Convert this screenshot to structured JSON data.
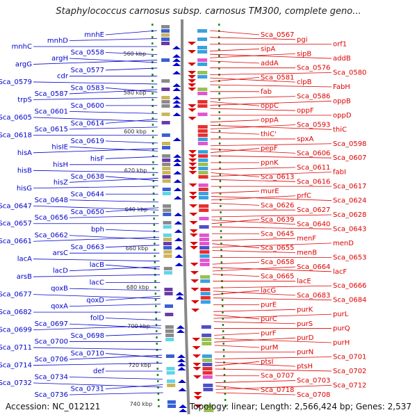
{
  "title": "Staphylococcus carnosus subsp. carnosus TM300, complete geno...",
  "footer": {
    "accession": "Accession: NC_012121",
    "topology": "Topology: linear; Length: 2,566,424 bp; Genes: 2,537"
  },
  "kbp_labels": [
    "560 kbp",
    "580 kbp",
    "600 kbp",
    "620 kbp",
    "640 kbp",
    "660 kbp",
    "680 kbp",
    "700 kbp",
    "720 kbp",
    "740 kbp"
  ],
  "colors": {
    "left": "#0000cc",
    "right": "#dd0000",
    "axis": "#888888",
    "tick": "#228822"
  },
  "left_genes": [
    "mnhE",
    "mnhD",
    "mnhC",
    "Sca_0558",
    "argH",
    "argG",
    "Sca_0577",
    "cdr",
    "Sca_0579",
    "Sca_0583",
    "Sca_0587",
    "trpS",
    "Sca_0600",
    "Sca_0601",
    "Sca_0605",
    "Sca_0614",
    "Sca_0615",
    "Sca_0618",
    "Sca_0619",
    "hisIE",
    "hisA",
    "hisF",
    "hisH",
    "hisB",
    "Sca_0638",
    "hisZ",
    "hisG",
    "Sca_0644",
    "Sca_0648",
    "Sca_0647",
    "Sca_0650",
    "Sca_0656",
    "Sca_0657",
    "bph",
    "Sca_0662",
    "Sca_0661",
    "Sca_0663",
    "arsC",
    "lacA",
    "lacB",
    "lacD",
    "arsB",
    "lacC",
    "qoxB",
    "Sca_0677",
    "qoxD",
    "qoxA",
    "Sca_0682",
    "folD",
    "Sca_0697",
    "Sca_0699",
    "Sca_0698",
    "Sca_0700",
    "Sca_0711",
    "Sca_0710",
    "Sca_0706",
    "Sca_0714",
    "def",
    "Sca_0734",
    "Sca_0732",
    "Sca_0731",
    "Sca_0736"
  ],
  "right_genes": [
    "Sca_0567",
    "pgi",
    "orf1",
    "sipA",
    "sipB",
    "addB",
    "addA",
    "Sca_0576",
    "Sca_0580",
    "Sca_0581",
    "clpB",
    "FabH",
    "fab",
    "Sca_0586",
    "oppB",
    "oppC",
    "oppF",
    "oppD",
    "oppA",
    "Sca_0593",
    "thiC",
    "thiC'",
    "spxA",
    "Sca_0598",
    "pepF",
    "Sca_0606",
    "Sca_0607",
    "ppnK",
    "Sca_0611",
    "fabI",
    "Sca_0613",
    "Sca_0616",
    "Sca_0617",
    "murE",
    "prfC",
    "Sca_0624",
    "Sca_0626",
    "Sca_0627",
    "Sca_0628",
    "Sca_0639",
    "Sca_0640",
    "Sca_0643",
    "Sca_0645",
    "menF",
    "menD",
    "Sca_0655",
    "menB",
    "Sca_0653",
    "Sca_0658",
    "Sca_0664",
    "lacF",
    "Sca_0665",
    "lacE",
    "Sca_0666",
    "lacG",
    "Sca_0683",
    "Sca_0684",
    "purE",
    "purK",
    "purL",
    "purC",
    "purS",
    "purQ",
    "purF",
    "purD",
    "purH",
    "purM",
    "purN",
    "Sca_0701",
    "ptsI",
    "ptsH",
    "Sca_0702",
    "Sca_0707",
    "Sca_0703",
    "Sca_0712",
    "Sca_0718",
    "Sca_0708"
  ]
}
